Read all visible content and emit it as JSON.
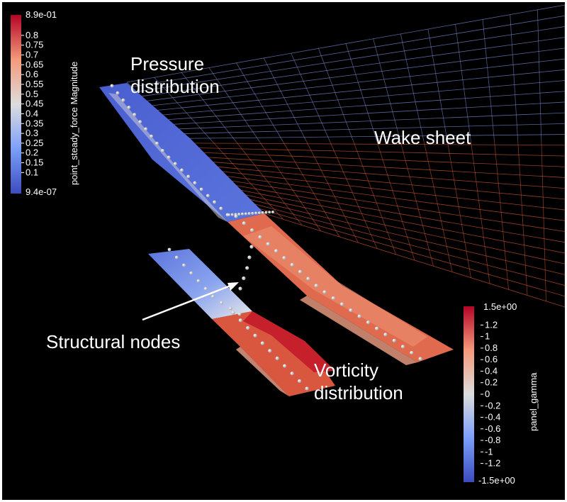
{
  "annotations": {
    "pressure_line1": "Pressure",
    "pressure_line2": "distribution",
    "wake": "Wake sheet",
    "structural": "Structural nodes",
    "vorticity_line1": "Vorticity",
    "vorticity_line2": "distribution"
  },
  "colorbar_force": {
    "title": "point_steady_force Magnitude",
    "max_label": "8.9e-01",
    "min_label": "9.4e-07",
    "ticks": [
      "0.8",
      "0.75",
      "0.7",
      "0.65",
      "0.6",
      "0.55",
      "0.5",
      "0.45",
      "0.4",
      "0.35",
      "0.3",
      "0.25",
      "0.2",
      "0.15",
      "0.1"
    ],
    "min": 9.4e-07,
    "max": 0.89
  },
  "colorbar_gamma": {
    "title": "panel_gamma",
    "max_label": "1.5e+00",
    "min_label": "-1.5e+00",
    "ticks": [
      "1.2",
      "1",
      "0.8",
      "0.6",
      "0.4",
      "0.2",
      "0",
      "-0.2",
      "-0.4",
      "-0.6",
      "-0.8",
      "-1",
      "-1.2"
    ],
    "min": -1.5,
    "max": 1.5
  },
  "colors": {
    "background": "#000000",
    "cool": "#3b4cc0",
    "neutral": "#dddddd",
    "warm": "#b40426",
    "wake_blue": "#7f90d8",
    "wake_red": "#d85a3a"
  }
}
